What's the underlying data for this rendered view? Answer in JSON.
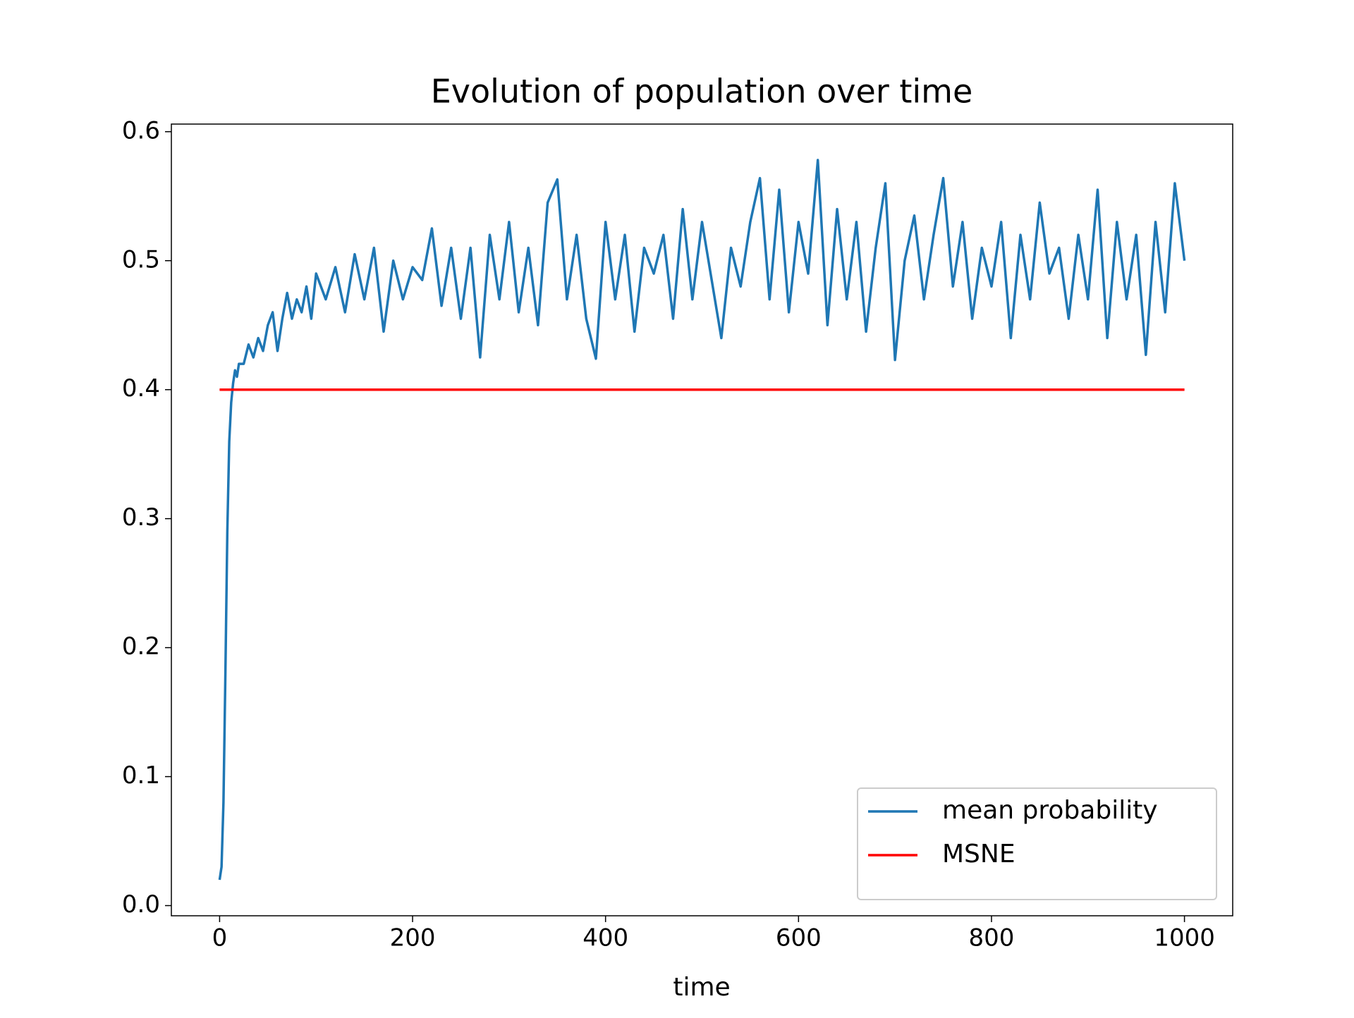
{
  "chart_data": {
    "type": "line",
    "title": "Evolution of population over time",
    "x_label": "time",
    "xlim": [
      -50,
      1050
    ],
    "ylim": [
      -0.0079,
      0.6059
    ],
    "xticks": [
      0,
      200,
      400,
      600,
      800,
      1000
    ],
    "yticks": [
      {
        "value": 0,
        "label": "0.0"
      },
      0.1,
      0.2,
      0.3,
      0.4,
      0.5,
      0.6
    ],
    "legend": "lower right",
    "series": [
      {
        "name": "mean probability",
        "color": "#1f77b4",
        "x": [
          0,
          2,
          4,
          6,
          8,
          10,
          12,
          14,
          16,
          18,
          20,
          25,
          30,
          35,
          40,
          45,
          50,
          55,
          60,
          65,
          70,
          75,
          80,
          85,
          90,
          95,
          100,
          110,
          120,
          130,
          140,
          150,
          160,
          170,
          180,
          190,
          200,
          210,
          220,
          230,
          240,
          250,
          260,
          270,
          280,
          290,
          300,
          310,
          320,
          330,
          340,
          350,
          360,
          370,
          380,
          390,
          400,
          410,
          420,
          430,
          440,
          450,
          460,
          470,
          480,
          490,
          500,
          510,
          520,
          530,
          540,
          550,
          560,
          570,
          580,
          590,
          600,
          610,
          620,
          630,
          640,
          650,
          660,
          670,
          680,
          690,
          700,
          710,
          720,
          730,
          740,
          750,
          760,
          770,
          780,
          790,
          800,
          810,
          820,
          830,
          840,
          850,
          860,
          870,
          880,
          890,
          900,
          910,
          920,
          930,
          940,
          950,
          960,
          970,
          980,
          990,
          1000
        ],
        "values": [
          0.02,
          0.03,
          0.08,
          0.18,
          0.29,
          0.36,
          0.39,
          0.405,
          0.415,
          0.41,
          0.42,
          0.42,
          0.435,
          0.425,
          0.44,
          0.43,
          0.45,
          0.46,
          0.43,
          0.455,
          0.475,
          0.455,
          0.47,
          0.46,
          0.48,
          0.455,
          0.49,
          0.47,
          0.495,
          0.46,
          0.505,
          0.47,
          0.51,
          0.445,
          0.5,
          0.47,
          0.495,
          0.485,
          0.525,
          0.465,
          0.51,
          0.455,
          0.51,
          0.425,
          0.52,
          0.47,
          0.53,
          0.46,
          0.51,
          0.45,
          0.545,
          0.563,
          0.47,
          0.52,
          0.455,
          0.424,
          0.53,
          0.47,
          0.52,
          0.445,
          0.51,
          0.49,
          0.52,
          0.455,
          0.54,
          0.47,
          0.53,
          0.485,
          0.44,
          0.51,
          0.48,
          0.53,
          0.564,
          0.47,
          0.555,
          0.46,
          0.53,
          0.49,
          0.578,
          0.45,
          0.54,
          0.47,
          0.53,
          0.445,
          0.51,
          0.56,
          0.423,
          0.5,
          0.535,
          0.47,
          0.52,
          0.564,
          0.48,
          0.53,
          0.455,
          0.51,
          0.48,
          0.53,
          0.44,
          0.52,
          0.47,
          0.545,
          0.49,
          0.51,
          0.455,
          0.52,
          0.47,
          0.555,
          0.44,
          0.53,
          0.47,
          0.52,
          0.427,
          0.53,
          0.46,
          0.56,
          0.5
        ]
      },
      {
        "name": "MSNE",
        "color": "#ff0000",
        "x": [
          0,
          1000
        ],
        "values": [
          0.4,
          0.4
        ]
      }
    ]
  }
}
